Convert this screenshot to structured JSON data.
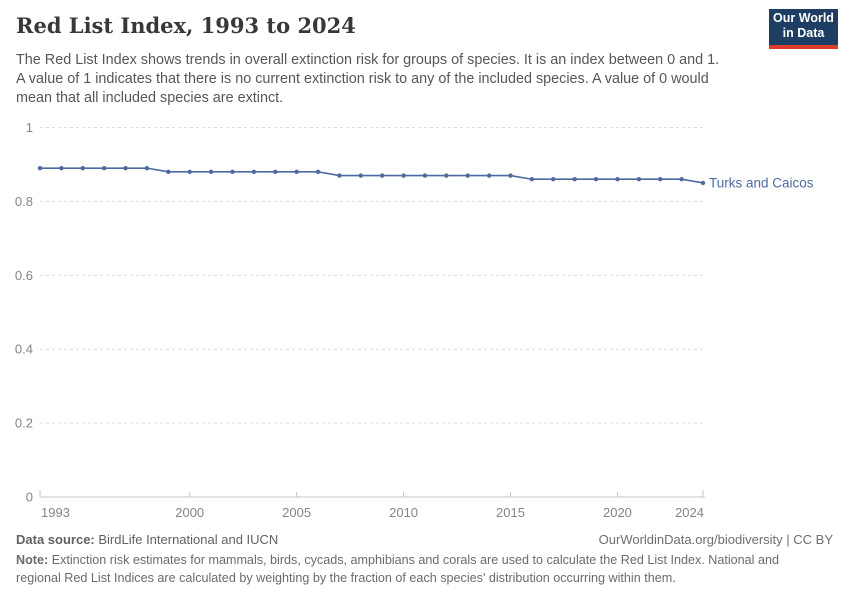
{
  "logo": {
    "line1": "Our World",
    "line2": "in Data"
  },
  "header": {
    "title": "Red List Index, 1993 to 2024",
    "subtitle_lines": [
      "The Red List Index shows trends in overall extinction risk for groups of species. It is an index between 0 and 1.",
      "A value of 1 indicates that there is no current extinction risk to any of the included species. A value of 0 would",
      "mean that all included species are extinct."
    ]
  },
  "chart_data": {
    "type": "line",
    "title": "Red List Index, 1993 to 2024",
    "x": [
      1993,
      1994,
      1995,
      1996,
      1997,
      1998,
      1999,
      2000,
      2001,
      2002,
      2003,
      2004,
      2005,
      2006,
      2007,
      2008,
      2009,
      2010,
      2011,
      2012,
      2013,
      2014,
      2015,
      2016,
      2017,
      2018,
      2019,
      2020,
      2021,
      2022,
      2023,
      2024
    ],
    "series": [
      {
        "name": "Turks and Caicos",
        "color": "#4d6aa0",
        "values": [
          0.89,
          0.89,
          0.89,
          0.89,
          0.89,
          0.89,
          0.88,
          0.88,
          0.88,
          0.88,
          0.88,
          0.88,
          0.88,
          0.88,
          0.87,
          0.87,
          0.87,
          0.87,
          0.87,
          0.87,
          0.87,
          0.87,
          0.87,
          0.86,
          0.86,
          0.86,
          0.86,
          0.86,
          0.86,
          0.86,
          0.86,
          0.85
        ]
      }
    ],
    "xlim": [
      1993,
      2024
    ],
    "ylim": [
      0,
      1
    ],
    "yticks": [
      0,
      0.2,
      0.4,
      0.6,
      0.8,
      1
    ],
    "xticks": [
      1993,
      2000,
      2005,
      2010,
      2015,
      2020,
      2024
    ],
    "grid": "horizontal-dashed",
    "legend_position": "end-of-line-label"
  },
  "footer": {
    "data_source_label": "Data source:",
    "data_source_value": "BirdLife International and IUCN",
    "attribution": "OurWorldinData.org/biodiversity | CC BY",
    "note_label": "Note:",
    "note_lines": [
      "Extinction risk estimates for mammals, birds, cycads, amphibians and corals are used to calculate the Red List Index. National and",
      "regional Red List Indices are calculated by weighting by the fraction of each species' distribution occurring within them."
    ]
  }
}
